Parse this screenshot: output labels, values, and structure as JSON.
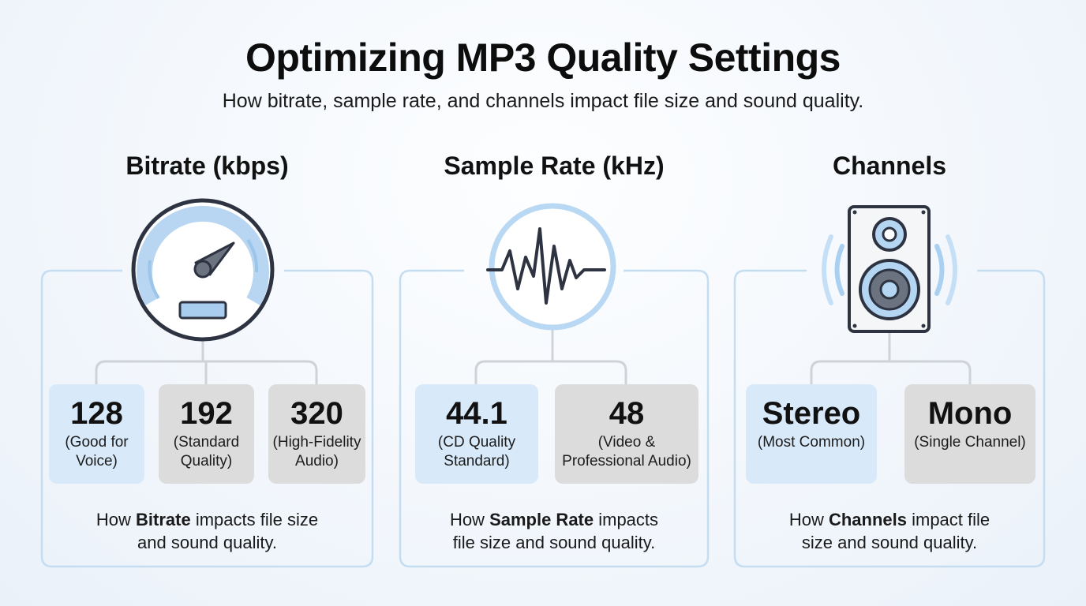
{
  "title": "Optimizing MP3 Quality Settings",
  "subtitle": "How bitrate, sample rate, and channels impact file size and sound quality.",
  "columns": [
    {
      "heading": "Bitrate (kbps)",
      "icon": "speedometer-icon",
      "options": [
        {
          "value": "128",
          "line1": "(Good for",
          "line2": "Voice)",
          "tone": "blue"
        },
        {
          "value": "192",
          "line1": "(Standard",
          "line2": "Quality)",
          "tone": "gray"
        },
        {
          "value": "320",
          "line1": "(High-Fidelity",
          "line2": "Audio)",
          "tone": "gray"
        }
      ],
      "caption": {
        "pre": "How ",
        "bold": "Bitrate",
        "mid": " impacts file size",
        "line2": "and sound quality."
      }
    },
    {
      "heading": "Sample Rate (kHz)",
      "icon": "waveform-icon",
      "options": [
        {
          "value": "44.1",
          "line1": "(CD Quality",
          "line2": "Standard)",
          "tone": "blue"
        },
        {
          "value": "48",
          "line1": "(Video &",
          "line2": "Professional Audio)",
          "tone": "gray"
        }
      ],
      "caption": {
        "pre": "How ",
        "bold": "Sample Rate",
        "mid": " impacts",
        "line2": "file size and sound quality."
      }
    },
    {
      "heading": "Channels",
      "icon": "speaker-icon",
      "options": [
        {
          "value": "Stereo",
          "line1": "(Most Common)",
          "line2": "",
          "tone": "blue"
        },
        {
          "value": "Mono",
          "line1": "(Single Channel)",
          "line2": "",
          "tone": "gray"
        }
      ],
      "caption": {
        "pre": "How ",
        "bold": "Channels",
        "mid": " impact file",
        "line2": "size and sound quality."
      }
    }
  ],
  "colors": {
    "accent_blue": "#b9d8f3",
    "icon_blue": "#9fc8ec",
    "dark_outline": "#2d3340",
    "card_blue": "#d8e9f9",
    "card_gray": "#dcdcdc",
    "frame_line": "#c4ddf1"
  }
}
